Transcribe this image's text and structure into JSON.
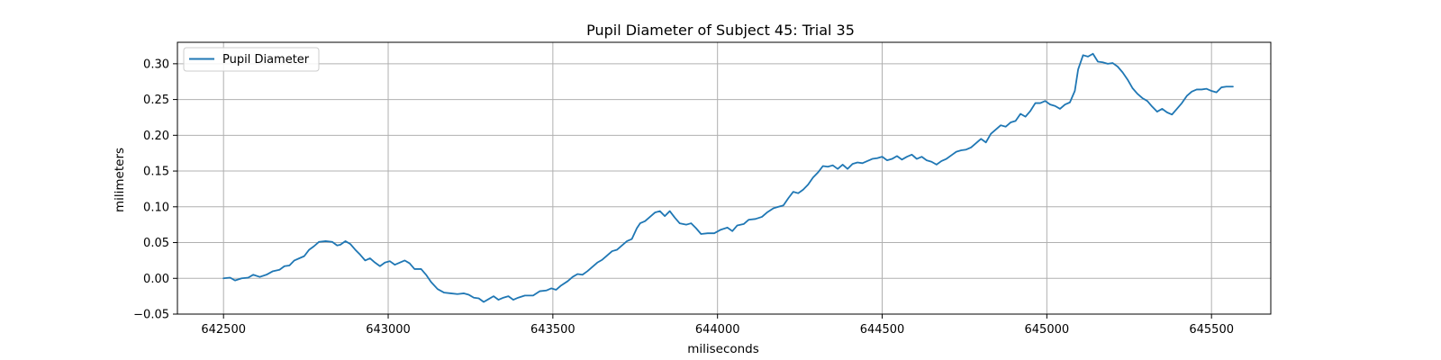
{
  "chart_data": {
    "type": "line",
    "title": "Pupil Diameter of Subject 45: Trial 35",
    "xlabel": "miliseconds",
    "ylabel": "milimeters",
    "xlim": [
      642360,
      645680
    ],
    "ylim": [
      -0.05,
      0.33
    ],
    "xticks": [
      642500,
      643000,
      643500,
      644000,
      644500,
      645000,
      645500
    ],
    "xtick_labels": [
      "642500",
      "643000",
      "643500",
      "644000",
      "644500",
      "645000",
      "645500"
    ],
    "yticks": [
      -0.05,
      0.0,
      0.05,
      0.1,
      0.15,
      0.2,
      0.25,
      0.3
    ],
    "ytick_labels": [
      "−0.05",
      "0.00",
      "0.05",
      "0.10",
      "0.15",
      "0.20",
      "0.25",
      "0.30"
    ],
    "grid": true,
    "legend": {
      "position": "top-left",
      "entries": [
        "Pupil Diameter"
      ]
    },
    "series": [
      {
        "name": "Pupil Diameter",
        "color": "#1f77b4",
        "points": [
          [
            642500,
            0.0
          ],
          [
            642520,
            0.001
          ],
          [
            642535,
            -0.003
          ],
          [
            642555,
            0.0
          ],
          [
            642575,
            0.001
          ],
          [
            642590,
            0.005
          ],
          [
            642610,
            0.002
          ],
          [
            642630,
            0.005
          ],
          [
            642650,
            0.01
          ],
          [
            642670,
            0.012
          ],
          [
            642685,
            0.017
          ],
          [
            642700,
            0.018
          ],
          [
            642715,
            0.025
          ],
          [
            642730,
            0.028
          ],
          [
            642745,
            0.031
          ],
          [
            642760,
            0.04
          ],
          [
            642775,
            0.045
          ],
          [
            642790,
            0.051
          ],
          [
            642810,
            0.052
          ],
          [
            642830,
            0.051
          ],
          [
            642845,
            0.046
          ],
          [
            642855,
            0.047
          ],
          [
            642870,
            0.052
          ],
          [
            642885,
            0.048
          ],
          [
            642900,
            0.04
          ],
          [
            642915,
            0.033
          ],
          [
            642930,
            0.025
          ],
          [
            642945,
            0.028
          ],
          [
            642960,
            0.022
          ],
          [
            642975,
            0.017
          ],
          [
            642990,
            0.022
          ],
          [
            643005,
            0.024
          ],
          [
            643020,
            0.019
          ],
          [
            643035,
            0.022
          ],
          [
            643050,
            0.025
          ],
          [
            643065,
            0.021
          ],
          [
            643080,
            0.013
          ],
          [
            643100,
            0.013
          ],
          [
            643115,
            0.005
          ],
          [
            643130,
            -0.005
          ],
          [
            643150,
            -0.015
          ],
          [
            643170,
            -0.02
          ],
          [
            643190,
            -0.021
          ],
          [
            643210,
            -0.022
          ],
          [
            643230,
            -0.021
          ],
          [
            643245,
            -0.023
          ],
          [
            643260,
            -0.027
          ],
          [
            643275,
            -0.028
          ],
          [
            643290,
            -0.033
          ],
          [
            643305,
            -0.029
          ],
          [
            643320,
            -0.025
          ],
          [
            643335,
            -0.03
          ],
          [
            643350,
            -0.027
          ],
          [
            643365,
            -0.025
          ],
          [
            643380,
            -0.03
          ],
          [
            643395,
            -0.027
          ],
          [
            643415,
            -0.024
          ],
          [
            643440,
            -0.024
          ],
          [
            643460,
            -0.018
          ],
          [
            643480,
            -0.017
          ],
          [
            643495,
            -0.014
          ],
          [
            643510,
            -0.016
          ],
          [
            643525,
            -0.01
          ],
          [
            643545,
            -0.004
          ],
          [
            643560,
            0.002
          ],
          [
            643575,
            0.006
          ],
          [
            643590,
            0.005
          ],
          [
            643605,
            0.01
          ],
          [
            643620,
            0.016
          ],
          [
            643635,
            0.022
          ],
          [
            643650,
            0.026
          ],
          [
            643665,
            0.032
          ],
          [
            643680,
            0.038
          ],
          [
            643695,
            0.04
          ],
          [
            643710,
            0.046
          ],
          [
            643725,
            0.052
          ],
          [
            643740,
            0.055
          ],
          [
            643755,
            0.07
          ],
          [
            643765,
            0.077
          ],
          [
            643780,
            0.08
          ],
          [
            643795,
            0.086
          ],
          [
            643810,
            0.092
          ],
          [
            643825,
            0.094
          ],
          [
            643840,
            0.087
          ],
          [
            643855,
            0.094
          ],
          [
            643870,
            0.085
          ],
          [
            643885,
            0.077
          ],
          [
            643905,
            0.075
          ],
          [
            643920,
            0.077
          ],
          [
            643935,
            0.07
          ],
          [
            643950,
            0.062
          ],
          [
            643970,
            0.063
          ],
          [
            643990,
            0.063
          ],
          [
            644010,
            0.068
          ],
          [
            644030,
            0.071
          ],
          [
            644045,
            0.066
          ],
          [
            644060,
            0.074
          ],
          [
            644080,
            0.076
          ],
          [
            644095,
            0.082
          ],
          [
            644115,
            0.083
          ],
          [
            644135,
            0.086
          ],
          [
            644150,
            0.092
          ],
          [
            644170,
            0.098
          ],
          [
            644185,
            0.1
          ],
          [
            644200,
            0.102
          ],
          [
            644215,
            0.112
          ],
          [
            644230,
            0.121
          ],
          [
            644245,
            0.119
          ],
          [
            644260,
            0.124
          ],
          [
            644275,
            0.131
          ],
          [
            644290,
            0.141
          ],
          [
            644305,
            0.148
          ],
          [
            644320,
            0.157
          ],
          [
            644335,
            0.156
          ],
          [
            644350,
            0.158
          ],
          [
            644365,
            0.153
          ],
          [
            644380,
            0.159
          ],
          [
            644395,
            0.153
          ],
          [
            644410,
            0.16
          ],
          [
            644425,
            0.162
          ],
          [
            644440,
            0.161
          ],
          [
            644455,
            0.164
          ],
          [
            644470,
            0.167
          ],
          [
            644485,
            0.168
          ],
          [
            644500,
            0.17
          ],
          [
            644515,
            0.165
          ],
          [
            644530,
            0.167
          ],
          [
            644545,
            0.171
          ],
          [
            644560,
            0.166
          ],
          [
            644575,
            0.17
          ],
          [
            644590,
            0.173
          ],
          [
            644605,
            0.167
          ],
          [
            644620,
            0.17
          ],
          [
            644635,
            0.165
          ],
          [
            644650,
            0.163
          ],
          [
            644665,
            0.159
          ],
          [
            644680,
            0.164
          ],
          [
            644695,
            0.167
          ],
          [
            644710,
            0.172
          ],
          [
            644725,
            0.177
          ],
          [
            644740,
            0.179
          ],
          [
            644755,
            0.18
          ],
          [
            644770,
            0.183
          ],
          [
            644785,
            0.189
          ],
          [
            644800,
            0.195
          ],
          [
            644815,
            0.19
          ],
          [
            644830,
            0.202
          ],
          [
            644845,
            0.208
          ],
          [
            644860,
            0.214
          ],
          [
            644875,
            0.212
          ],
          [
            644890,
            0.218
          ],
          [
            644905,
            0.22
          ],
          [
            644920,
            0.23
          ],
          [
            644935,
            0.226
          ],
          [
            644950,
            0.234
          ],
          [
            644965,
            0.245
          ],
          [
            644980,
            0.245
          ],
          [
            644995,
            0.248
          ],
          [
            645010,
            0.243
          ],
          [
            645025,
            0.241
          ],
          [
            645040,
            0.237
          ],
          [
            645055,
            0.243
          ],
          [
            645070,
            0.246
          ],
          [
            645085,
            0.262
          ],
          [
            645095,
            0.292
          ],
          [
            645110,
            0.312
          ],
          [
            645125,
            0.31
          ],
          [
            645140,
            0.314
          ],
          [
            645155,
            0.303
          ],
          [
            645170,
            0.302
          ],
          [
            645185,
            0.3
          ],
          [
            645200,
            0.301
          ],
          [
            645215,
            0.296
          ],
          [
            645230,
            0.288
          ],
          [
            645245,
            0.278
          ],
          [
            645260,
            0.266
          ],
          [
            645275,
            0.258
          ],
          [
            645290,
            0.252
          ],
          [
            645305,
            0.248
          ],
          [
            645320,
            0.24
          ],
          [
            645335,
            0.233
          ],
          [
            645350,
            0.237
          ],
          [
            645365,
            0.232
          ],
          [
            645380,
            0.229
          ],
          [
            645395,
            0.237
          ],
          [
            645410,
            0.245
          ],
          [
            645425,
            0.255
          ],
          [
            645440,
            0.261
          ],
          [
            645455,
            0.264
          ],
          [
            645470,
            0.264
          ],
          [
            645485,
            0.265
          ],
          [
            645500,
            0.262
          ],
          [
            645515,
            0.26
          ],
          [
            645530,
            0.267
          ],
          [
            645545,
            0.268
          ],
          [
            645565,
            0.268
          ]
        ]
      }
    ]
  }
}
